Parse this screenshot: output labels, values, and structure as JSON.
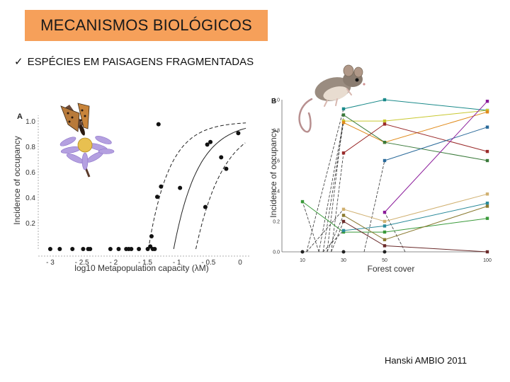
{
  "slide": {
    "title": "MECANISMOS BIOLÓGICOS",
    "bullet_mark": "✓",
    "bullet_text": "ESPÉCIES EM PAISAGENS FRAGMENTADAS",
    "credit": "Hanski  AMBIO 2011",
    "title_bg": "#f6a05a"
  },
  "chart_data": [
    {
      "type": "scatter",
      "panel_label": "A",
      "xlabel": "log10 Metapopulation capacity (λM)",
      "ylabel": "Incidence of occupancy",
      "xlim": [
        -3.1,
        0.1
      ],
      "ylim": [
        0,
        1.05
      ],
      "x_ticks": [
        "- 3",
        "- 2.5",
        "- 2",
        "- 1.5",
        "- 1",
        "- 0.5",
        "0"
      ],
      "y_ticks": [
        "0.2",
        "0.4",
        "0.6",
        "0.8",
        "1.0"
      ],
      "points": [
        {
          "x": -3.0,
          "y": 0.0
        },
        {
          "x": -2.85,
          "y": 0.0
        },
        {
          "x": -2.65,
          "y": 0.0
        },
        {
          "x": -2.48,
          "y": 0.0
        },
        {
          "x": -2.4,
          "y": 0.0
        },
        {
          "x": -2.37,
          "y": 0.0
        },
        {
          "x": -2.05,
          "y": 0.0
        },
        {
          "x": -1.92,
          "y": 0.0
        },
        {
          "x": -1.8,
          "y": 0.0
        },
        {
          "x": -1.76,
          "y": 0.0
        },
        {
          "x": -1.72,
          "y": 0.0
        },
        {
          "x": -1.6,
          "y": 0.0
        },
        {
          "x": -1.46,
          "y": 0.0
        },
        {
          "x": -1.42,
          "y": 0.02
        },
        {
          "x": -1.38,
          "y": 0.0
        },
        {
          "x": -1.35,
          "y": 0.0
        },
        {
          "x": -1.4,
          "y": 0.1
        },
        {
          "x": -1.31,
          "y": 0.41
        },
        {
          "x": -1.25,
          "y": 0.49
        },
        {
          "x": -1.29,
          "y": 0.98
        },
        {
          "x": -0.95,
          "y": 0.48
        },
        {
          "x": -0.55,
          "y": 0.33
        },
        {
          "x": -0.52,
          "y": 0.82
        },
        {
          "x": -0.47,
          "y": 0.84
        },
        {
          "x": -0.3,
          "y": 0.72
        },
        {
          "x": -0.22,
          "y": 0.63
        },
        {
          "x": -0.03,
          "y": 0.91
        }
      ],
      "curves": [
        {
          "style": "dashed",
          "x0": -1.45,
          "k": 3.0
        },
        {
          "style": "solid",
          "x0": -1.05,
          "k": 2.6
        },
        {
          "style": "dashed",
          "x0": -0.7,
          "k": 2.3
        }
      ]
    },
    {
      "type": "line",
      "panel_label": "B",
      "xlabel": "Forest cover",
      "ylabel": "Incidence of occupancy",
      "xlim": [
        0,
        100
      ],
      "ylim": [
        0,
        1.0
      ],
      "x_ticks": [
        "10",
        "30",
        "50",
        "100"
      ],
      "y_ticks": [
        "0.0",
        "0.2",
        "0.4",
        "0.6",
        "0.8",
        "1.0"
      ],
      "series": [
        {
          "color": "#1a8a8a",
          "points": [
            [
              30,
              0.94
            ],
            [
              50,
              1.0
            ],
            [
              100,
              0.93
            ]
          ]
        },
        {
          "color": "#c8c830",
          "points": [
            [
              30,
              0.86
            ],
            [
              50,
              0.86
            ],
            [
              100,
              0.93
            ]
          ]
        },
        {
          "color": "#e08a1a",
          "points": [
            [
              30,
              0.85
            ],
            [
              50,
              0.72
            ],
            [
              100,
              0.92
            ]
          ]
        },
        {
          "color": "#3a7a3a",
          "points": [
            [
              30,
              0.9
            ],
            [
              50,
              0.72
            ],
            [
              100,
              0.6
            ]
          ]
        },
        {
          "color": "#9a2a2a",
          "points": [
            [
              30,
              0.65
            ],
            [
              50,
              0.84
            ],
            [
              100,
              0.66
            ]
          ]
        },
        {
          "color": "#2a6a9a",
          "points": [
            [
              50,
              0.6
            ],
            [
              100,
              0.82
            ]
          ]
        },
        {
          "color": "#8a1a9a",
          "points": [
            [
              50,
              0.26
            ],
            [
              100,
              0.99
            ]
          ]
        },
        {
          "color": "#d0b070",
          "points": [
            [
              30,
              0.28
            ],
            [
              50,
              0.2
            ],
            [
              100,
              0.38
            ]
          ]
        },
        {
          "color": "#3a9a3a",
          "points": [
            [
              10,
              0.33
            ],
            [
              30,
              0.13
            ],
            [
              50,
              0.13
            ],
            [
              100,
              0.22
            ]
          ]
        },
        {
          "color": "#2a8a9a",
          "points": [
            [
              30,
              0.14
            ],
            [
              50,
              0.17
            ],
            [
              100,
              0.32
            ]
          ]
        },
        {
          "color": "#8a7a30",
          "points": [
            [
              30,
              0.24
            ],
            [
              50,
              0.08
            ],
            [
              100,
              0.3
            ]
          ]
        },
        {
          "color": "#6a2a2a",
          "points": [
            [
              30,
              0.2
            ],
            [
              50,
              0.04
            ],
            [
              100,
              0.0
            ]
          ]
        }
      ]
    }
  ]
}
